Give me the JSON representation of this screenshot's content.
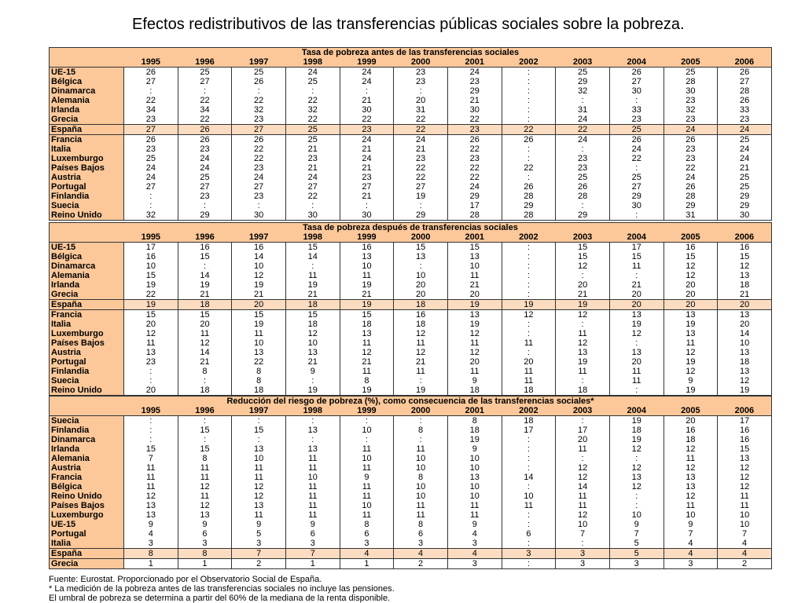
{
  "title": "Efectos redistributivos de las transferencias públicas sociales sobre la pobreza.",
  "years": [
    "1995",
    "1996",
    "1997",
    "1998",
    "1999",
    "2000",
    "2001",
    "2002",
    "2003",
    "2004",
    "2005",
    "2006"
  ],
  "tables": [
    {
      "id": "t1",
      "caption": "Tasa de pobreza antes de las transferencias sociales",
      "highlight": "España",
      "rows": [
        {
          "label": "UE-15",
          "values": [
            "26",
            "25",
            "25",
            "24",
            "24",
            "23",
            "24",
            ":",
            "25",
            "26",
            "25",
            "26"
          ]
        },
        {
          "label": "Bélgica",
          "values": [
            "27",
            "27",
            "26",
            "25",
            "24",
            "23",
            "23",
            ":",
            "29",
            "27",
            "28",
            "27"
          ]
        },
        {
          "label": "Dinamarca",
          "values": [
            ":",
            ":",
            ":",
            ":",
            ":",
            ":",
            "29",
            ":",
            "32",
            "30",
            "30",
            "28"
          ]
        },
        {
          "label": "Alemania",
          "values": [
            "22",
            "22",
            "22",
            "22",
            "21",
            "20",
            "21",
            ":",
            ":",
            ":",
            "23",
            "26"
          ]
        },
        {
          "label": "Irlanda",
          "values": [
            "34",
            "34",
            "32",
            "32",
            "30",
            "31",
            "30",
            ":",
            "31",
            "33",
            "32",
            "33"
          ]
        },
        {
          "label": "Grecia",
          "values": [
            "23",
            "22",
            "23",
            "22",
            "22",
            "22",
            "22",
            ":",
            "24",
            "23",
            "23",
            "23"
          ]
        },
        {
          "label": "España",
          "values": [
            "27",
            "26",
            "27",
            "25",
            "23",
            "22",
            "23",
            "22",
            "22",
            "25",
            "24",
            "24"
          ]
        },
        {
          "label": "Francia",
          "values": [
            "26",
            "26",
            "26",
            "25",
            "24",
            "24",
            "26",
            "26",
            "24",
            "26",
            "26",
            "25"
          ]
        },
        {
          "label": "Italia",
          "values": [
            "23",
            "23",
            "22",
            "21",
            "21",
            "21",
            "22",
            ":",
            ":",
            "24",
            "23",
            "24"
          ]
        },
        {
          "label": "Luxemburgo",
          "values": [
            "25",
            "24",
            "22",
            "23",
            "24",
            "23",
            "23",
            ":",
            "23",
            "22",
            "23",
            "24"
          ]
        },
        {
          "label": "Países Bajos",
          "values": [
            "24",
            "24",
            "23",
            "21",
            "21",
            "22",
            "22",
            "22",
            "23",
            ":",
            "22",
            "21"
          ]
        },
        {
          "label": "Austria",
          "values": [
            "24",
            "25",
            "24",
            "24",
            "23",
            "22",
            "22",
            ":",
            "25",
            "25",
            "24",
            "25"
          ]
        },
        {
          "label": "Portugal",
          "values": [
            "27",
            "27",
            "27",
            "27",
            "27",
            "27",
            "24",
            "26",
            "26",
            "27",
            "26",
            "25"
          ]
        },
        {
          "label": "Finlandia",
          "values": [
            ":",
            "23",
            "23",
            "22",
            "21",
            "19",
            "29",
            "28",
            "28",
            "29",
            "28",
            "29"
          ]
        },
        {
          "label": "Suecia",
          "values": [
            ":",
            ":",
            ":",
            ":",
            ":",
            ":",
            "17",
            "29",
            ":",
            "30",
            "29",
            "29"
          ]
        },
        {
          "label": "Reino Unido",
          "values": [
            "32",
            "29",
            "30",
            "30",
            "30",
            "29",
            "28",
            "28",
            "29",
            ":",
            "31",
            "30"
          ]
        }
      ]
    },
    {
      "id": "t2",
      "caption": "Tasa de pobreza después de transferencias sociales",
      "highlight": "España",
      "rows": [
        {
          "label": "UE-15",
          "values": [
            "17",
            "16",
            "16",
            "15",
            "16",
            "15",
            "15",
            ":",
            "15",
            "17",
            "16",
            "16"
          ]
        },
        {
          "label": "Bélgica",
          "values": [
            "16",
            "15",
            "14",
            "14",
            "13",
            "13",
            "13",
            ":",
            "15",
            "15",
            "15",
            "15"
          ]
        },
        {
          "label": "Dinamarca",
          "values": [
            "10",
            ":",
            "10",
            ":",
            "10",
            ":",
            "10",
            ":",
            "12",
            "11",
            "12",
            "12"
          ]
        },
        {
          "label": "Alemania",
          "values": [
            "15",
            "14",
            "12",
            "11",
            "11",
            "10",
            "11",
            ":",
            ":",
            ":",
            "12",
            "13"
          ]
        },
        {
          "label": "Irlanda",
          "values": [
            "19",
            "19",
            "19",
            "19",
            "19",
            "20",
            "21",
            ":",
            "20",
            "21",
            "20",
            "18"
          ]
        },
        {
          "label": "Grecia",
          "values": [
            "22",
            "21",
            "21",
            "21",
            "21",
            "20",
            "20",
            ":",
            "21",
            "20",
            "20",
            "21"
          ]
        },
        {
          "label": "España",
          "values": [
            "19",
            "18",
            "20",
            "18",
            "19",
            "18",
            "19",
            "19",
            "19",
            "20",
            "20",
            "20"
          ]
        },
        {
          "label": "Francia",
          "values": [
            "15",
            "15",
            "15",
            "15",
            "15",
            "16",
            "13",
            "12",
            "12",
            "13",
            "13",
            "13"
          ]
        },
        {
          "label": "Italia",
          "values": [
            "20",
            "20",
            "19",
            "18",
            "18",
            "18",
            "19",
            ":",
            ":",
            "19",
            "19",
            "20"
          ]
        },
        {
          "label": "Luxemburgo",
          "values": [
            "12",
            "11",
            "11",
            "12",
            "13",
            "12",
            "12",
            ":",
            "11",
            "12",
            "13",
            "14"
          ]
        },
        {
          "label": "Países Bajos",
          "values": [
            "11",
            "12",
            "10",
            "10",
            "11",
            "11",
            "11",
            "11",
            "12",
            ":",
            "11",
            "10"
          ]
        },
        {
          "label": "Austria",
          "values": [
            "13",
            "14",
            "13",
            "13",
            "12",
            "12",
            "12",
            ":",
            "13",
            "13",
            "12",
            "13"
          ]
        },
        {
          "label": "Portugal",
          "values": [
            "23",
            "21",
            "22",
            "21",
            "21",
            "21",
            "20",
            "20",
            "19",
            "20",
            "19",
            "18"
          ]
        },
        {
          "label": "Finlandia",
          "values": [
            ":",
            "8",
            "8",
            "9",
            "11",
            "11",
            "11",
            "11",
            "11",
            "11",
            "12",
            "13"
          ]
        },
        {
          "label": "Suecia",
          "values": [
            ":",
            ":",
            "8",
            ":",
            "8",
            ":",
            "9",
            "11",
            ":",
            "11",
            "9",
            "12"
          ]
        },
        {
          "label": "Reino Unido",
          "values": [
            "20",
            "18",
            "18",
            "19",
            "19",
            "19",
            "18",
            "18",
            "18",
            ":",
            "19",
            "19"
          ]
        }
      ]
    },
    {
      "id": "t3",
      "caption": "Reducción del riesgo de pobreza (%), como consecuencia de las transferencias sociales*",
      "highlight": "España",
      "rows": [
        {
          "label": "Suecia",
          "values": [
            ":",
            ":",
            ":",
            ":",
            ":",
            ":",
            "8",
            "18",
            ":",
            "19",
            "20",
            "17"
          ]
        },
        {
          "label": "Finlandia",
          "values": [
            ":",
            "15",
            "15",
            "13",
            "10",
            "8",
            "18",
            "17",
            "17",
            "18",
            "16",
            "16"
          ]
        },
        {
          "label": "Dinamarca",
          "values": [
            ":",
            ":",
            ":",
            ":",
            ":",
            ":",
            "19",
            ":",
            "20",
            "19",
            "18",
            "16"
          ]
        },
        {
          "label": "Irlanda",
          "values": [
            "15",
            "15",
            "13",
            "13",
            "11",
            "11",
            "9",
            ":",
            "11",
            "12",
            "12",
            "15"
          ]
        },
        {
          "label": "Alemania",
          "values": [
            "7",
            "8",
            "10",
            "11",
            "10",
            "10",
            "10",
            ":",
            ":",
            ":",
            "11",
            "13"
          ]
        },
        {
          "label": "Austria",
          "values": [
            "11",
            "11",
            "11",
            "11",
            "11",
            "10",
            "10",
            ":",
            "12",
            "12",
            "12",
            "12"
          ]
        },
        {
          "label": "Francia",
          "values": [
            "11",
            "11",
            "11",
            "10",
            "9",
            "8",
            "13",
            "14",
            "12",
            "13",
            "13",
            "12"
          ]
        },
        {
          "label": "Bélgica",
          "values": [
            "11",
            "12",
            "12",
            "11",
            "11",
            "10",
            "10",
            ":",
            "14",
            "12",
            "13",
            "12"
          ]
        },
        {
          "label": "Reino Unido",
          "values": [
            "12",
            "11",
            "12",
            "11",
            "11",
            "10",
            "10",
            "10",
            "11",
            ":",
            "12",
            "11"
          ]
        },
        {
          "label": "Países Bajos",
          "values": [
            "13",
            "12",
            "13",
            "11",
            "10",
            "11",
            "11",
            "11",
            "11",
            ":",
            "11",
            "11"
          ]
        },
        {
          "label": "Luxemburgo",
          "values": [
            "13",
            "13",
            "11",
            "11",
            "11",
            "11",
            "11",
            ":",
            "12",
            "10",
            "10",
            "10"
          ]
        },
        {
          "label": "UE-15",
          "values": [
            "9",
            "9",
            "9",
            "9",
            "8",
            "8",
            "9",
            ":",
            "10",
            "9",
            "9",
            "10"
          ]
        },
        {
          "label": "Portugal",
          "values": [
            "4",
            "6",
            "5",
            "6",
            "6",
            "6",
            "4",
            "6",
            "7",
            "7",
            "7",
            "7"
          ]
        },
        {
          "label": "Italia",
          "values": [
            "3",
            "3",
            "3",
            "3",
            "3",
            "3",
            "3",
            ":",
            ":",
            "5",
            "4",
            "4"
          ]
        },
        {
          "label": "España",
          "values": [
            "8",
            "8",
            "7",
            "7",
            "4",
            "4",
            "4",
            "3",
            "3",
            "5",
            "4",
            "4"
          ]
        },
        {
          "label": "Grecia",
          "values": [
            "1",
            "1",
            "2",
            "1",
            "1",
            "2",
            "3",
            ":",
            "3",
            "3",
            "3",
            "2"
          ]
        }
      ]
    }
  ],
  "notes": [
    "Fuente: Eurostat. Proporcionado por el Observatorio Social de España.",
    "* La medición de la pobreza antes de las transferencias sociales no incluye las pensiones.",
    "El umbral de pobreza se determina a partir del 60% de la mediana de la renta disponible."
  ]
}
